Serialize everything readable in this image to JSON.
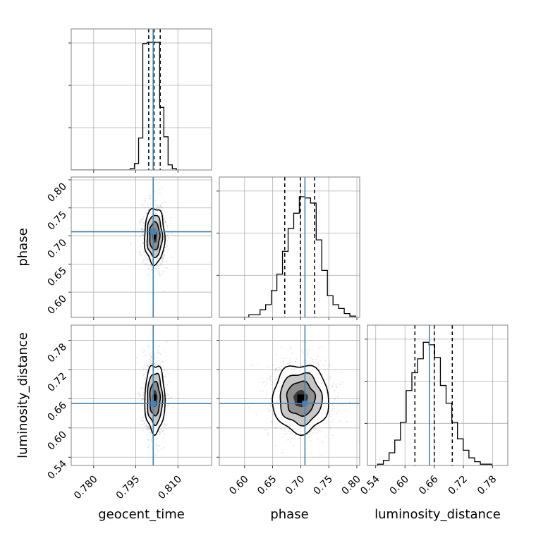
{
  "chart_data": {
    "type": "corner",
    "grid": true,
    "colors": {
      "truth": "#4682b4",
      "hist": "#000000",
      "frame": "#808080",
      "grid": "#b0b0b0",
      "contour": "#000000"
    },
    "parameters": [
      {
        "name": "geocent_time",
        "range": [
          0.772,
          0.822
        ],
        "ticks": [
          0.78,
          0.795,
          0.81
        ],
        "tick_labels": [
          "0.780",
          "0.795",
          "0.810"
        ],
        "truth": 0.8012,
        "quantiles": [
          0.7996,
          0.8015,
          0.8037
        ]
      },
      {
        "name": "phase",
        "range": [
          0.555,
          0.805
        ],
        "ticks": [
          0.6,
          0.65,
          0.7,
          0.75,
          0.8
        ],
        "tick_labels": [
          "0.60",
          "0.65",
          "0.70",
          "0.75",
          "0.80"
        ],
        "truth": 0.7075,
        "quantiles": [
          0.6715,
          0.6995,
          0.7245
        ]
      },
      {
        "name": "luminosity_distance",
        "range": [
          0.523,
          0.811
        ],
        "ticks": [
          0.54,
          0.6,
          0.66,
          0.72,
          0.78
        ],
        "tick_labels": [
          "0.54",
          "0.60",
          "0.66",
          "0.72",
          "0.78"
        ],
        "truth": 0.6501,
        "quantiles": [
          0.6204,
          0.6601,
          0.6971
        ]
      }
    ],
    "axis_labels": {
      "bottom": [
        "geocent_time",
        "phase",
        "luminosity_distance"
      ],
      "left": [
        "phase",
        "luminosity_distance"
      ]
    },
    "histograms": [
      {
        "parameter": "geocent_time",
        "bin_edges": [
          0.793,
          0.7945,
          0.796,
          0.7975,
          0.799,
          0.8005,
          0.802,
          0.8035,
          0.805,
          0.8065,
          0.808,
          0.8095
        ],
        "counts": [
          0.01,
          0.05,
          0.25,
          0.99,
          1.0,
          1.0,
          1.0,
          0.49,
          0.26,
          0.04,
          0.01
        ]
      },
      {
        "parameter": "phase",
        "bin_edges": [
          0.6075,
          0.6175,
          0.6275,
          0.6375,
          0.6475,
          0.6575,
          0.6675,
          0.6775,
          0.6875,
          0.6975,
          0.7075,
          0.7175,
          0.7275,
          0.7375,
          0.7475,
          0.7575,
          0.7675,
          0.7775,
          0.7875,
          0.7975
        ],
        "counts": [
          0.02,
          0.02,
          0.06,
          0.1,
          0.21,
          0.34,
          0.52,
          0.7,
          0.82,
          0.95,
          0.94,
          0.9,
          0.61,
          0.37,
          0.17,
          0.1,
          0.07,
          0.03,
          0.01
        ]
      },
      {
        "parameter": "luminosity_distance",
        "bin_edges": [
          0.544,
          0.5557,
          0.5674,
          0.5791,
          0.5908,
          0.6025,
          0.6142,
          0.6259,
          0.6376,
          0.6493,
          0.661,
          0.6727,
          0.6844,
          0.6961,
          0.7078,
          0.7195,
          0.7312,
          0.7429,
          0.7546,
          0.7663,
          0.778
        ],
        "counts": [
          0.01,
          0.04,
          0.1,
          0.2,
          0.34,
          0.59,
          0.73,
          0.84,
          0.97,
          0.95,
          0.85,
          0.63,
          0.49,
          0.34,
          0.21,
          0.12,
          0.06,
          0.03,
          0.01,
          0.01
        ]
      }
    ],
    "posterior_2d": [
      {
        "x_param": "geocent_time",
        "y_param": "phase",
        "center": [
          0.8017,
          0.7
        ],
        "sigma": [
          0.0018,
          0.025
        ]
      },
      {
        "x_param": "geocent_time",
        "y_param": "luminosity_distance",
        "center": [
          0.8018,
          0.66
        ],
        "sigma": [
          0.0018,
          0.035
        ]
      },
      {
        "x_param": "phase",
        "y_param": "luminosity_distance",
        "center": [
          0.7,
          0.66
        ],
        "sigma": [
          0.025,
          0.035
        ]
      }
    ],
    "contour_levels_sigma": [
      0.5,
      1.0,
      1.5,
      2.0
    ]
  }
}
